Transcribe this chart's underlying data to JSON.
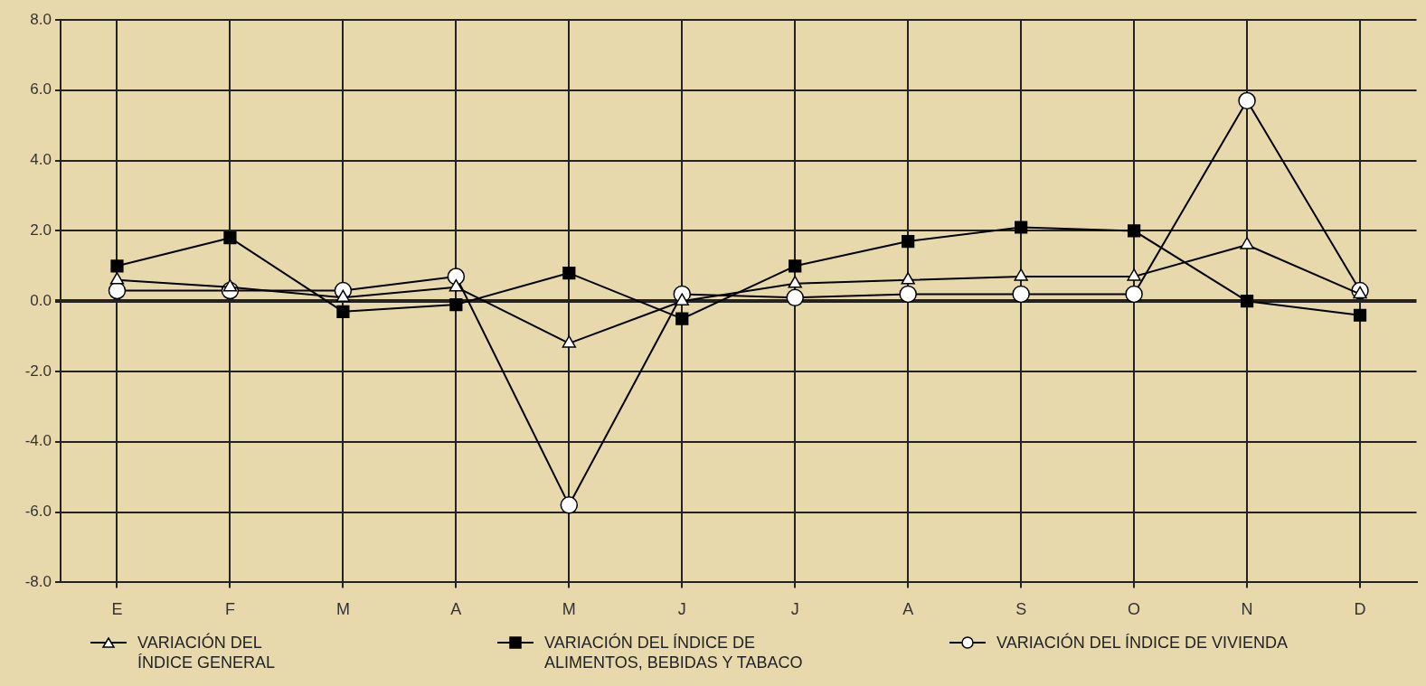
{
  "chart_data": {
    "type": "line",
    "categories": [
      "E",
      "F",
      "M",
      "A",
      "M",
      "J",
      "J",
      "A",
      "S",
      "O",
      "N",
      "D"
    ],
    "series": [
      {
        "name": "VARIACIÓN DEL ÍNDICE GENERAL",
        "color": "#000000",
        "marker": "triangle",
        "values": [
          0.6,
          0.4,
          0.1,
          0.4,
          -1.2,
          0.0,
          0.5,
          0.6,
          0.7,
          0.7,
          1.6,
          0.2
        ]
      },
      {
        "name": "VARIACIÓN DEL ÍNDICE DE ALIMENTOS, BEBIDAS Y TABACO",
        "color": "#000000",
        "marker": "square",
        "values": [
          1.0,
          1.8,
          -0.3,
          -0.1,
          0.8,
          -0.5,
          1.0,
          1.7,
          2.1,
          2.0,
          0.0,
          -0.4
        ]
      },
      {
        "name": "VARIACIÓN DEL ÍNDICE DE VIVIENDA",
        "color": "#000000",
        "marker": "circle",
        "values": [
          0.3,
          0.3,
          0.3,
          0.7,
          -5.8,
          0.2,
          0.1,
          0.2,
          0.2,
          0.2,
          5.7,
          0.3
        ]
      }
    ],
    "ylim": [
      -8,
      8
    ],
    "yticks": [
      {
        "value": -8,
        "label": "-8.0"
      },
      {
        "value": -6,
        "label": "-6.0"
      },
      {
        "value": -4,
        "label": "-4.0"
      },
      {
        "value": -2,
        "label": "-2.0"
      },
      {
        "value": 0,
        "label": "0.0"
      },
      {
        "value": 2,
        "label": "2.0"
      },
      {
        "value": 4,
        "label": "4.0"
      },
      {
        "value": 6,
        "label": "6.0"
      },
      {
        "value": 8,
        "label": "8.0"
      }
    ],
    "grid": true,
    "legend": "bottom"
  }
}
